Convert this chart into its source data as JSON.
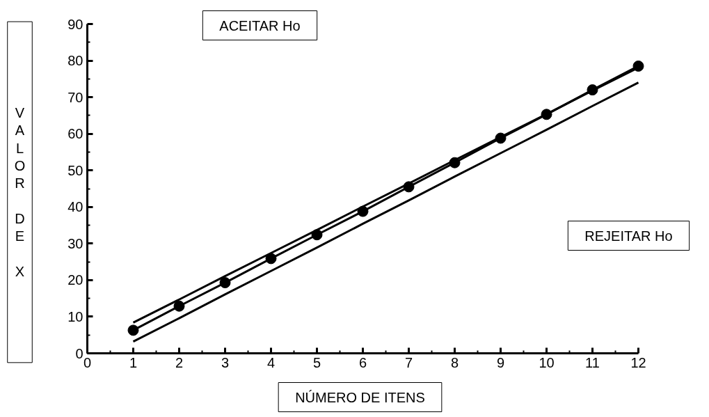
{
  "chart_data": {
    "type": "line",
    "xlabel": "NÚMERO DE ITENS",
    "ylabel": "VALOR DE X",
    "annotations": [
      "ACEITAR Ho",
      "REJEITAR Ho"
    ],
    "x": [
      1,
      2,
      3,
      4,
      5,
      6,
      7,
      8,
      9,
      10,
      11,
      12
    ],
    "series": [
      {
        "color": "#000000",
        "values": [
          6.3,
          12.9,
          19.3,
          25.9,
          32.4,
          38.8,
          45.5,
          52.1,
          58.8,
          65.3,
          72.0,
          78.5
        ],
        "marker": "circle"
      },
      {
        "color": "#000000",
        "values": [
          8.4,
          14.7,
          21.1,
          27.4,
          33.7,
          40.1,
          46.4,
          52.8,
          59.1,
          65.4,
          71.8,
          78.1
        ],
        "marker": "none"
      },
      {
        "color": "#000000",
        "values": [
          3.2,
          9.6,
          16.1,
          22.5,
          28.9,
          35.4,
          41.8,
          48.3,
          54.7,
          61.1,
          67.6,
          74.0
        ],
        "marker": "none"
      }
    ],
    "xlim": [
      0,
      12
    ],
    "ylim": [
      0,
      90
    ],
    "xticks": [
      0,
      1,
      2,
      3,
      4,
      5,
      6,
      7,
      8,
      9,
      10,
      11,
      12
    ],
    "yticks": [
      0,
      10,
      20,
      30,
      40,
      50,
      60,
      70,
      80,
      90
    ],
    "grid": false,
    "line_style": "solid"
  }
}
